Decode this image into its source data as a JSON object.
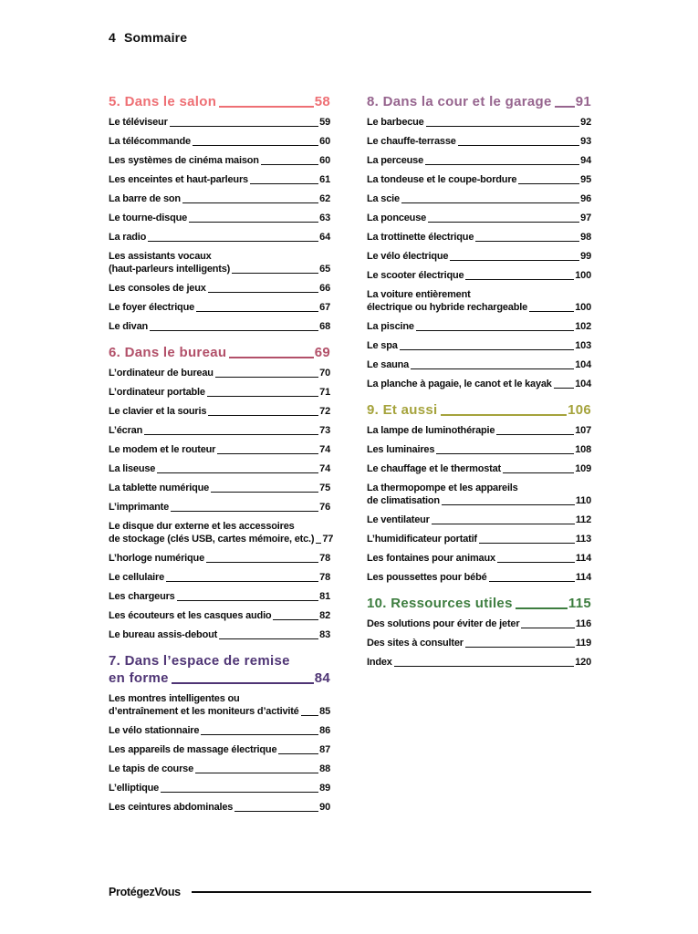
{
  "page": {
    "header_page_number": "4",
    "header_title": "Sommaire",
    "footer_logo": "ProtégezVous"
  },
  "sections": [
    {
      "id": "salon",
      "column": "left",
      "color": "#ee6f74",
      "heading_lines": [
        "5. Dans le salon"
      ],
      "page": "58",
      "items": [
        {
          "lines": [
            "Le téléviseur"
          ],
          "page": "59"
        },
        {
          "lines": [
            "La télécommande"
          ],
          "page": "60"
        },
        {
          "lines": [
            "Les systèmes de cinéma maison"
          ],
          "page": "60"
        },
        {
          "lines": [
            "Les enceintes et haut-parleurs"
          ],
          "page": "61"
        },
        {
          "lines": [
            "La barre de son"
          ],
          "page": "62"
        },
        {
          "lines": [
            "Le tourne-disque"
          ],
          "page": "63"
        },
        {
          "lines": [
            "La radio"
          ],
          "page": "64"
        },
        {
          "lines": [
            "Les assistants vocaux",
            "(haut-parleurs intelligents)"
          ],
          "page": "65"
        },
        {
          "lines": [
            "Les consoles de jeux"
          ],
          "page": "66"
        },
        {
          "lines": [
            "Le foyer électrique"
          ],
          "page": "67"
        },
        {
          "lines": [
            "Le divan"
          ],
          "page": "68"
        }
      ]
    },
    {
      "id": "bureau",
      "column": "left",
      "color": "#b25069",
      "heading_lines": [
        "6. Dans le bureau"
      ],
      "page": "69",
      "items": [
        {
          "lines": [
            "L’ordinateur de bureau"
          ],
          "page": "70"
        },
        {
          "lines": [
            "L’ordinateur portable"
          ],
          "page": "71"
        },
        {
          "lines": [
            "Le clavier et la souris"
          ],
          "page": "72"
        },
        {
          "lines": [
            "L’écran"
          ],
          "page": "73"
        },
        {
          "lines": [
            "Le modem et le routeur"
          ],
          "page": "74"
        },
        {
          "lines": [
            "La liseuse"
          ],
          "page": "74"
        },
        {
          "lines": [
            "La tablette numérique"
          ],
          "page": "75"
        },
        {
          "lines": [
            "L’imprimante"
          ],
          "page": "76"
        },
        {
          "lines": [
            "Le disque dur externe et les accessoires",
            "de stockage (clés USB, cartes mémoire, etc.)"
          ],
          "page": "77"
        },
        {
          "lines": [
            "L’horloge numérique"
          ],
          "page": "78"
        },
        {
          "lines": [
            "Le cellulaire"
          ],
          "page": "78"
        },
        {
          "lines": [
            "Les chargeurs"
          ],
          "page": "81"
        },
        {
          "lines": [
            "Les écouteurs et les casques audio"
          ],
          "page": "82"
        },
        {
          "lines": [
            "Le bureau assis-debout"
          ],
          "page": "83"
        }
      ]
    },
    {
      "id": "remise-en-forme",
      "column": "left",
      "color": "#4f3575",
      "heading_lines": [
        "7. Dans l’espace de remise",
        "en forme "
      ],
      "page": "84",
      "items": [
        {
          "lines": [
            "Les montres intelligentes ou",
            "d’entraînement et les moniteurs d’activité"
          ],
          "page": "85"
        },
        {
          "lines": [
            "Le vélo stationnaire"
          ],
          "page": "86"
        },
        {
          "lines": [
            "Les appareils de massage électrique"
          ],
          "page": "87"
        },
        {
          "lines": [
            "Le tapis de course"
          ],
          "page": "88"
        },
        {
          "lines": [
            "L’elliptique"
          ],
          "page": "89"
        },
        {
          "lines": [
            "Les ceintures abdominales"
          ],
          "page": "90"
        }
      ]
    },
    {
      "id": "cour-et-garage",
      "column": "right",
      "color": "#96648e",
      "heading_lines": [
        "8. Dans la cour et le garage"
      ],
      "page": "91",
      "items": [
        {
          "lines": [
            "Le barbecue"
          ],
          "page": "92"
        },
        {
          "lines": [
            "Le chauffe-terrasse"
          ],
          "page": "93"
        },
        {
          "lines": [
            "La perceuse"
          ],
          "page": "94"
        },
        {
          "lines": [
            "La tondeuse et le coupe-bordure"
          ],
          "page": "95"
        },
        {
          "lines": [
            "La scie"
          ],
          "page": "96"
        },
        {
          "lines": [
            "La ponceuse"
          ],
          "page": "97"
        },
        {
          "lines": [
            "La trottinette électrique"
          ],
          "page": "98"
        },
        {
          "lines": [
            "Le vélo électrique"
          ],
          "page": "99"
        },
        {
          "lines": [
            "Le scooter électrique"
          ],
          "page": "100"
        },
        {
          "lines": [
            "La voiture entièrement",
            "électrique ou hybride rechargeable"
          ],
          "page": "100"
        },
        {
          "lines": [
            "La piscine"
          ],
          "page": "102"
        },
        {
          "lines": [
            "Le spa"
          ],
          "page": "103"
        },
        {
          "lines": [
            "Le sauna"
          ],
          "page": "104"
        },
        {
          "lines": [
            "La planche à pagaie, le canot et le kayak"
          ],
          "page": "104"
        }
      ]
    },
    {
      "id": "et-aussi",
      "column": "right",
      "color": "#a5a33c",
      "heading_lines": [
        "9. Et aussi"
      ],
      "page": "106",
      "items": [
        {
          "lines": [
            "La lampe de luminothérapie"
          ],
          "page": "107"
        },
        {
          "lines": [
            "Les luminaires"
          ],
          "page": "108"
        },
        {
          "lines": [
            "Le chauffage et le thermostat"
          ],
          "page": "109"
        },
        {
          "lines": [
            "La thermopompe et les appareils",
            "de climatisation"
          ],
          "page": "110"
        },
        {
          "lines": [
            "Le ventilateur"
          ],
          "page": "112"
        },
        {
          "lines": [
            "L’humidificateur portatif"
          ],
          "page": "113"
        },
        {
          "lines": [
            "Les fontaines pour animaux"
          ],
          "page": "114"
        },
        {
          "lines": [
            "Les poussettes pour bébé"
          ],
          "page": "114"
        }
      ]
    },
    {
      "id": "ressources-utiles",
      "column": "right",
      "color": "#3d7d3f",
      "heading_lines": [
        "10. Ressources utiles"
      ],
      "page": "115",
      "items": [
        {
          "lines": [
            "Des solutions pour éviter de jeter"
          ],
          "page": "116"
        },
        {
          "lines": [
            "Des sites à consulter"
          ],
          "page": "119"
        },
        {
          "lines": [
            "Index"
          ],
          "page": "120"
        }
      ]
    }
  ]
}
